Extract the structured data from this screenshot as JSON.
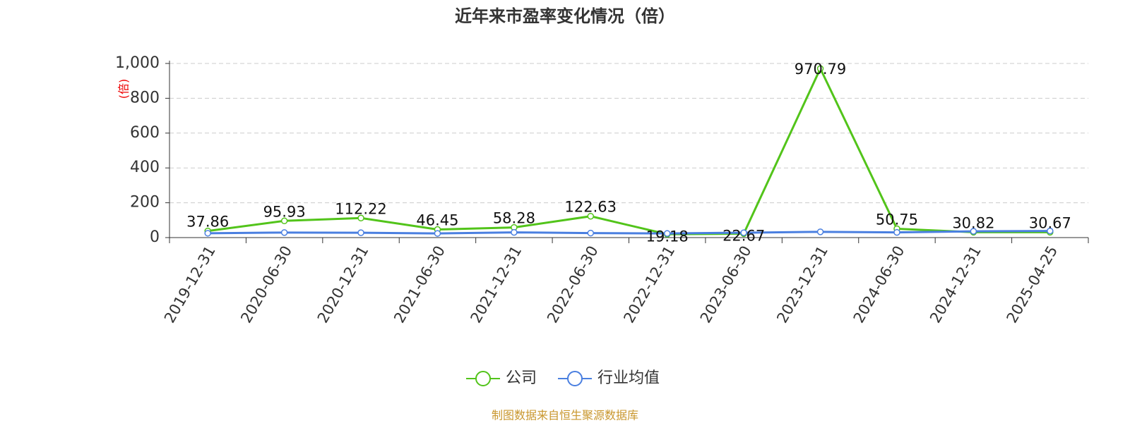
{
  "chart_data": {
    "type": "line",
    "title": "近年来市盈率变化情况（倍）",
    "y_label": "(倍)",
    "categories": [
      "2019-12-31",
      "2020-06-30",
      "2020-12-31",
      "2021-06-30",
      "2021-12-31",
      "2022-06-30",
      "2022-12-31",
      "2023-06-30",
      "2023-12-31",
      "2024-06-30",
      "2024-12-31",
      "2025-04-25"
    ],
    "series": [
      {
        "name": "公司",
        "color": "#52c41a",
        "values": [
          37.86,
          95.93,
          112.22,
          46.45,
          58.28,
          122.63,
          19.18,
          22.67,
          970.79,
          50.75,
          30.82,
          30.67
        ]
      },
      {
        "name": "行业均值",
        "color": "#4a7fe0",
        "values": [
          25,
          29,
          28,
          24,
          30,
          26,
          24,
          28,
          33,
          30,
          36,
          38
        ]
      }
    ],
    "ylim": [
      0,
      1000
    ],
    "yticks": [
      0,
      200,
      400,
      600,
      800,
      {
        "value": 1000,
        "label": "1,000"
      }
    ],
    "grid": true,
    "source": "制图数据来自恒生聚源数据库"
  }
}
